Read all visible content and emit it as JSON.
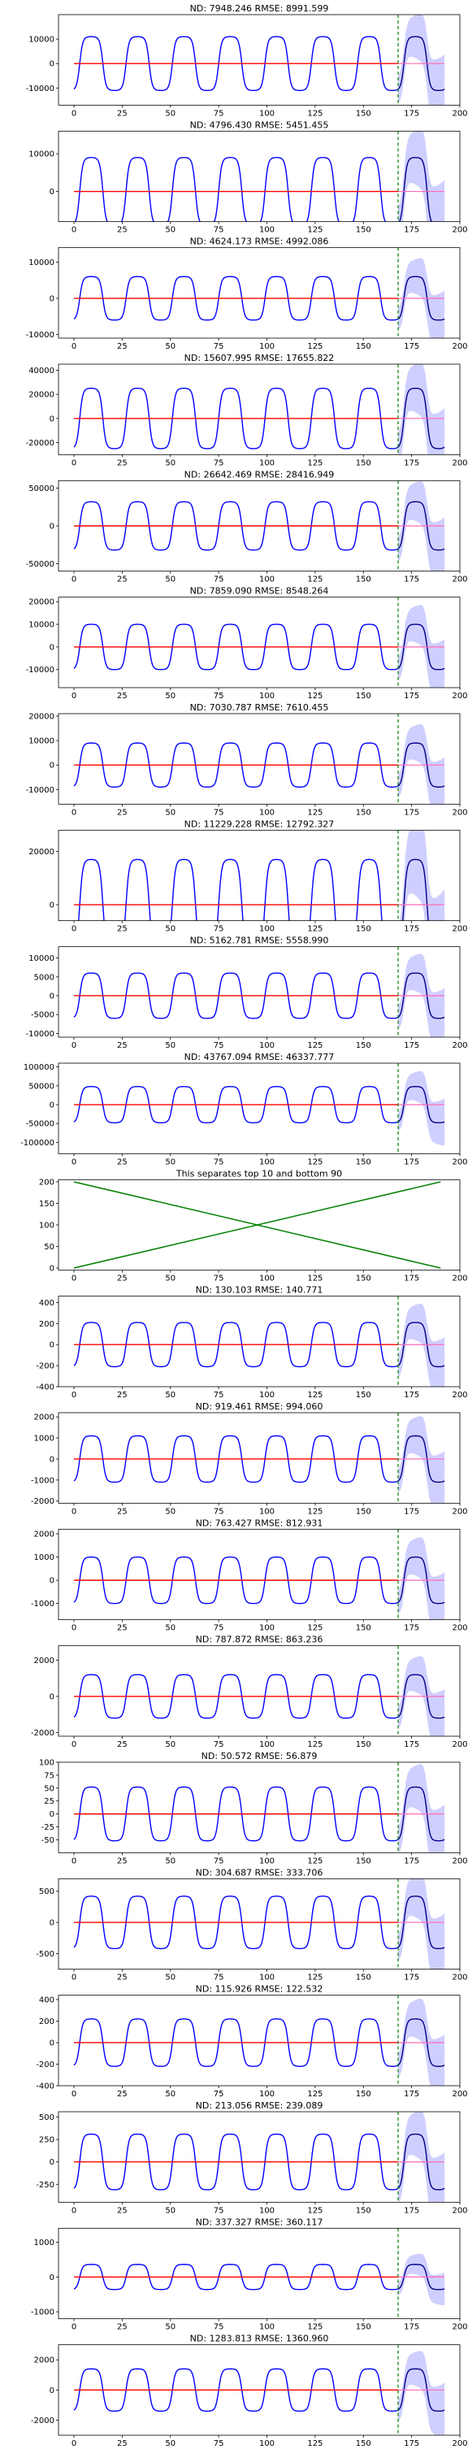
{
  "chart_data": {
    "type": "line",
    "description_series": [
      "history",
      "forecast median",
      "prediction interval",
      "ground truth",
      "forecast start"
    ],
    "colors": {
      "history": "#0000ff",
      "forecast": "#00008b",
      "interval": "#c7c7ff",
      "truth": "#ff0000",
      "forecast_truth": "#ff69b4",
      "split": "#008000"
    },
    "forecast_start_x": 168,
    "xlim": [
      -8,
      200
    ],
    "x_ticks": [
      "0",
      "25",
      "50",
      "75",
      "100",
      "125",
      "150",
      "175",
      "200"
    ],
    "panels": [
      {
        "title": "ND:  7948.246 RMSE:  8991.599",
        "ylim": [
          -17000,
          20000
        ],
        "y_ticks": [
          "-10000",
          "0",
          "10000"
        ],
        "amp": 11000
      },
      {
        "title": "ND:  4796.430 RMSE:  5451.455",
        "ylim": [
          -8000,
          16000
        ],
        "y_ticks": [
          "0",
          "10000"
        ],
        "amp": 9000
      },
      {
        "title": "ND:  4624.173 RMSE:  4992.086",
        "ylim": [
          -11000,
          14000
        ],
        "y_ticks": [
          "-10000",
          "0",
          "10000"
        ],
        "amp": 6000
      },
      {
        "title": "ND:  15607.995 RMSE:  17655.822",
        "ylim": [
          -30000,
          45000
        ],
        "y_ticks": [
          "-20000",
          "0",
          "20000",
          "40000"
        ],
        "amp": 25000
      },
      {
        "title": "ND:  26642.469 RMSE:  28416.949",
        "ylim": [
          -60000,
          60000
        ],
        "y_ticks": [
          "-50000",
          "0",
          "50000"
        ],
        "amp": 32000
      },
      {
        "title": "ND:  7859.090 RMSE:  8548.264",
        "ylim": [
          -18000,
          22000
        ],
        "y_ticks": [
          "-10000",
          "0",
          "10000",
          "20000"
        ],
        "amp": 10000
      },
      {
        "title": "ND:  7030.787 RMSE:  7610.455",
        "ylim": [
          -16000,
          21000
        ],
        "y_ticks": [
          "-10000",
          "0",
          "10000",
          "20000"
        ],
        "amp": 9000
      },
      {
        "title": "ND:  11229.228 RMSE:  12792.327",
        "ylim": [
          -6000,
          28000
        ],
        "y_ticks": [
          "0",
          "20000"
        ],
        "amp": 17000
      },
      {
        "title": "ND:  5162.781 RMSE:  5558.990",
        "ylim": [
          -11000,
          13000
        ],
        "y_ticks": [
          "-10000",
          "-5000",
          "0",
          "5000",
          "10000"
        ],
        "amp": 6000
      },
      {
        "title": "ND:  43767.094 RMSE:  46337.777",
        "ylim": [
          -130000,
          110000
        ],
        "y_ticks": [
          "-100000",
          "-50000",
          "0",
          "50000",
          "100000"
        ],
        "amp": 48000
      },
      {
        "title": "This separates top 10 and bottom 90",
        "separator": true,
        "ylim": [
          -5,
          205
        ],
        "y_ticks": [
          "0",
          "50",
          "100",
          "150",
          "200"
        ]
      },
      {
        "title": "ND:  130.103 RMSE:  140.771",
        "ylim": [
          -400,
          460
        ],
        "y_ticks": [
          "-400",
          "-200",
          "0",
          "200",
          "400"
        ],
        "amp": 210
      },
      {
        "title": "ND:  919.461 RMSE:  994.060",
        "ylim": [
          -2100,
          2200
        ],
        "y_ticks": [
          "-2000",
          "-1000",
          "0",
          "1000",
          "2000"
        ],
        "amp": 1100
      },
      {
        "title": "ND:  763.427 RMSE:  812.931",
        "ylim": [
          -1700,
          2200
        ],
        "y_ticks": [
          "-1000",
          "0",
          "1000",
          "2000"
        ],
        "amp": 1000
      },
      {
        "title": "ND:  787.872 RMSE:  863.236",
        "ylim": [
          -2200,
          2800
        ],
        "y_ticks": [
          "-2000",
          "0",
          "2000"
        ],
        "amp": 1200
      },
      {
        "title": "ND:  50.572 RMSE:  56.879",
        "ylim": [
          -75,
          100
        ],
        "y_ticks": [
          "-50",
          "-25",
          "0",
          "25",
          "50",
          "75",
          "100"
        ],
        "amp": 52
      },
      {
        "title": "ND:  304.687 RMSE:  333.706",
        "ylim": [
          -750,
          700
        ],
        "y_ticks": [
          "-500",
          "0",
          "500"
        ],
        "amp": 420
      },
      {
        "title": "ND:  115.926 RMSE:  122.532",
        "ylim": [
          -400,
          440
        ],
        "y_ticks": [
          "-400",
          "-200",
          "0",
          "200",
          "400"
        ],
        "amp": 220
      },
      {
        "title": "ND:  213.056 RMSE:  239.089",
        "ylim": [
          -450,
          560
        ],
        "y_ticks": [
          "-250",
          "0",
          "250",
          "500"
        ],
        "amp": 310
      },
      {
        "title": "ND:  337.327 RMSE:  360.117",
        "ylim": [
          -1200,
          1400
        ],
        "y_ticks": [
          "-1000",
          "0",
          "1000"
        ],
        "amp": 360
      },
      {
        "title": "ND:  1283.813 RMSE:  1360.960",
        "ylim": [
          -3000,
          3000
        ],
        "y_ticks": [
          "-2000",
          "0",
          "2000"
        ],
        "amp": 1400
      }
    ]
  }
}
